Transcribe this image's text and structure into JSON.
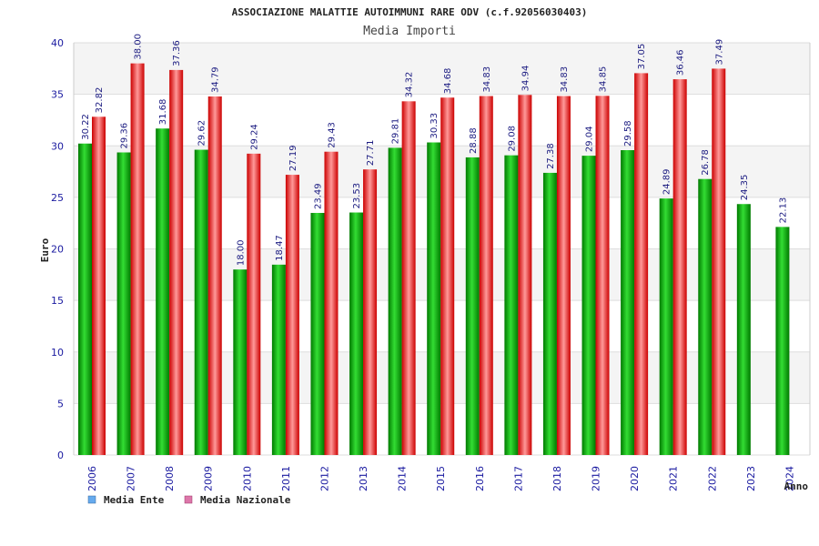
{
  "colors": {
    "ente_dark": "#007a00",
    "ente_light": "#33dd33",
    "naz_dark": "#cc0000",
    "naz_light": "#ff9999",
    "legend_ente": "#66aaee",
    "legend_naz": "#dd77aa"
  },
  "chart_data": {
    "type": "bar",
    "title": "ASSOCIAZIONE MALATTIE AUTOIMMUNI RARE ODV (c.f.92056030403)",
    "subtitle": "Media Importi",
    "xlabel": "Anno",
    "ylabel": "Euro",
    "ylim": [
      0,
      40
    ],
    "yticks": [
      0,
      5,
      10,
      15,
      20,
      25,
      30,
      35,
      40
    ],
    "grid": true,
    "legend_position": "bottom-left",
    "categories": [
      "2006",
      "2007",
      "2008",
      "2009",
      "2010",
      "2011",
      "2012",
      "2013",
      "2014",
      "2015",
      "2016",
      "2017",
      "2018",
      "2019",
      "2020",
      "2021",
      "2022",
      "2023",
      "2024"
    ],
    "series": [
      {
        "name": "Media Ente",
        "values": [
          30.22,
          29.36,
          31.68,
          29.62,
          18.0,
          18.47,
          23.49,
          23.53,
          29.81,
          30.33,
          28.88,
          29.08,
          27.38,
          29.04,
          29.58,
          24.89,
          26.78,
          24.35,
          22.13
        ],
        "labels": [
          "30.22",
          "29.36",
          "31.68",
          "29.62",
          "18.00",
          "18.47",
          "23.49",
          "23.53",
          "29.81",
          "30.33",
          "28.88",
          "29.08",
          "27.38",
          "29.04",
          "29.58",
          "24.89",
          "26.78",
          "24.35",
          "22.13"
        ]
      },
      {
        "name": "Media Nazionale",
        "values": [
          32.82,
          38.0,
          37.36,
          34.79,
          29.24,
          27.19,
          29.43,
          27.71,
          34.32,
          34.68,
          34.83,
          34.94,
          34.83,
          34.85,
          37.05,
          36.46,
          37.49,
          null,
          null
        ],
        "labels": [
          "32.82",
          "38.00",
          "37.36",
          "34.79",
          "29.24",
          "27.19",
          "29.43",
          "27.71",
          "34.32",
          "34.68",
          "34.83",
          "34.94",
          "34.83",
          "34.85",
          "37.05",
          "36.46",
          "37.49",
          "",
          ""
        ]
      }
    ]
  }
}
